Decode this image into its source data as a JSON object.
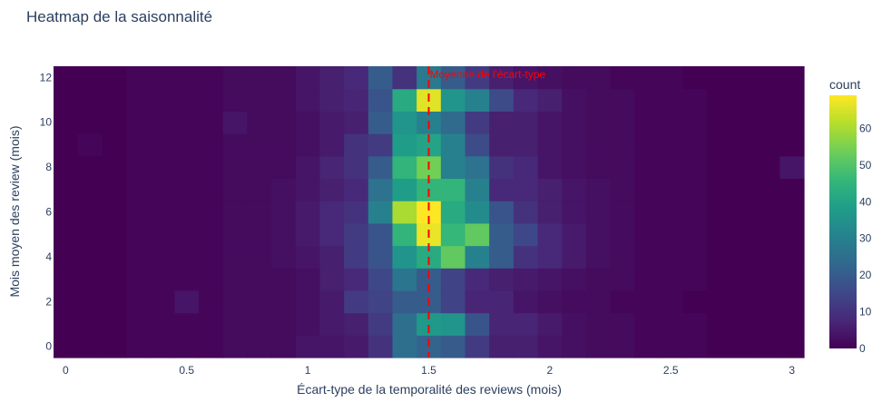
{
  "chart_data": {
    "type": "heatmap",
    "title": "Heatmap de la saisonnalité",
    "xlabel": "Écart-type de la temporalité des reviews (mois)",
    "ylabel": "Mois moyen des review (mois)",
    "colorbar_title": "count",
    "colorscale": "viridis",
    "x_ticks": [
      "0",
      "0.5",
      "1",
      "1.5",
      "2",
      "2.5",
      "3"
    ],
    "y_ticks": [
      "0",
      "2",
      "4",
      "6",
      "8",
      "10",
      "12"
    ],
    "colorbar_ticks": [
      "0",
      "10",
      "20",
      "30",
      "40",
      "50",
      "60"
    ],
    "x_range": [
      -0.05,
      3.05
    ],
    "y_range": [
      -0.5,
      12.5
    ],
    "z_range": [
      0,
      69
    ],
    "x_bins": [
      0.0,
      0.1,
      0.2,
      0.3,
      0.4,
      0.5,
      0.6,
      0.7,
      0.8,
      0.9,
      1.0,
      1.1,
      1.2,
      1.3,
      1.4,
      1.5,
      1.6,
      1.7,
      1.8,
      1.9,
      2.0,
      2.1,
      2.2,
      2.3,
      2.4,
      2.5,
      2.6,
      2.7,
      2.8,
      2.9,
      3.0
    ],
    "y_bins": [
      0,
      1,
      2,
      3,
      4,
      5,
      6,
      7,
      8,
      9,
      10,
      11,
      12
    ],
    "z": [
      [
        0,
        0,
        0,
        1,
        1,
        1,
        1,
        2,
        2,
        2,
        4,
        4,
        5,
        10,
        25,
        22,
        20,
        12,
        6,
        6,
        4,
        3,
        2,
        2,
        1,
        1,
        1,
        0,
        0,
        0,
        0
      ],
      [
        0,
        0,
        0,
        1,
        1,
        1,
        1,
        2,
        2,
        2,
        3,
        5,
        6,
        12,
        25,
        37,
        36,
        18,
        7,
        7,
        5,
        3,
        2,
        2,
        1,
        1,
        1,
        0,
        0,
        0,
        0
      ],
      [
        0,
        0,
        0,
        1,
        1,
        4,
        1,
        2,
        2,
        2,
        3,
        5,
        12,
        14,
        20,
        20,
        14,
        7,
        7,
        4,
        3,
        2,
        2,
        1,
        1,
        1,
        0,
        0,
        0,
        0,
        0
      ],
      [
        0,
        0,
        0,
        1,
        1,
        1,
        1,
        2,
        2,
        2,
        3,
        6,
        8,
        15,
        27,
        20,
        14,
        8,
        6,
        5,
        4,
        3,
        2,
        2,
        1,
        1,
        1,
        0,
        0,
        0,
        0
      ],
      [
        0,
        0,
        0,
        1,
        1,
        1,
        1,
        2,
        2,
        3,
        4,
        6,
        12,
        18,
        36,
        42,
        52,
        30,
        20,
        10,
        8,
        5,
        3,
        2,
        1,
        1,
        1,
        0,
        0,
        0,
        0
      ],
      [
        0,
        0,
        0,
        1,
        1,
        1,
        1,
        2,
        2,
        3,
        5,
        8,
        12,
        18,
        45,
        67,
        46,
        52,
        20,
        15,
        8,
        5,
        3,
        2,
        1,
        1,
        1,
        0,
        0,
        0,
        0
      ],
      [
        0,
        0,
        0,
        1,
        1,
        1,
        1,
        2,
        2,
        3,
        5,
        8,
        10,
        30,
        60,
        69,
        42,
        33,
        18,
        10,
        6,
        4,
        3,
        2,
        1,
        1,
        1,
        0,
        0,
        0,
        0
      ],
      [
        0,
        0,
        0,
        1,
        1,
        1,
        1,
        2,
        2,
        3,
        4,
        6,
        8,
        26,
        38,
        45,
        45,
        30,
        8,
        8,
        6,
        4,
        3,
        2,
        1,
        1,
        1,
        0,
        0,
        0,
        0
      ],
      [
        0,
        0,
        0,
        1,
        1,
        1,
        1,
        2,
        2,
        2,
        4,
        7,
        10,
        20,
        45,
        54,
        30,
        26,
        10,
        8,
        4,
        3,
        2,
        2,
        1,
        1,
        1,
        0,
        0,
        0,
        4
      ],
      [
        0,
        1,
        0,
        1,
        1,
        1,
        1,
        2,
        2,
        2,
        3,
        5,
        10,
        12,
        38,
        40,
        30,
        16,
        6,
        6,
        4,
        3,
        2,
        2,
        1,
        1,
        1,
        0,
        0,
        0,
        0
      ],
      [
        0,
        0,
        0,
        1,
        1,
        1,
        1,
        4,
        2,
        2,
        3,
        5,
        6,
        20,
        36,
        30,
        24,
        12,
        6,
        6,
        4,
        3,
        2,
        2,
        1,
        1,
        1,
        0,
        0,
        0,
        0
      ],
      [
        0,
        0,
        0,
        1,
        1,
        1,
        1,
        2,
        2,
        2,
        4,
        6,
        7,
        18,
        42,
        66,
        36,
        30,
        16,
        8,
        6,
        3,
        2,
        2,
        1,
        1,
        1,
        0,
        0,
        0,
        0
      ],
      [
        0,
        0,
        0,
        1,
        1,
        1,
        1,
        2,
        2,
        2,
        4,
        6,
        8,
        20,
        10,
        28,
        20,
        12,
        6,
        4,
        3,
        2,
        2,
        1,
        1,
        1,
        0,
        0,
        0,
        0,
        0
      ]
    ],
    "vline": {
      "x": 1.5,
      "color": "#ff0000",
      "label": "Moyenne de l'écart-type"
    }
  }
}
